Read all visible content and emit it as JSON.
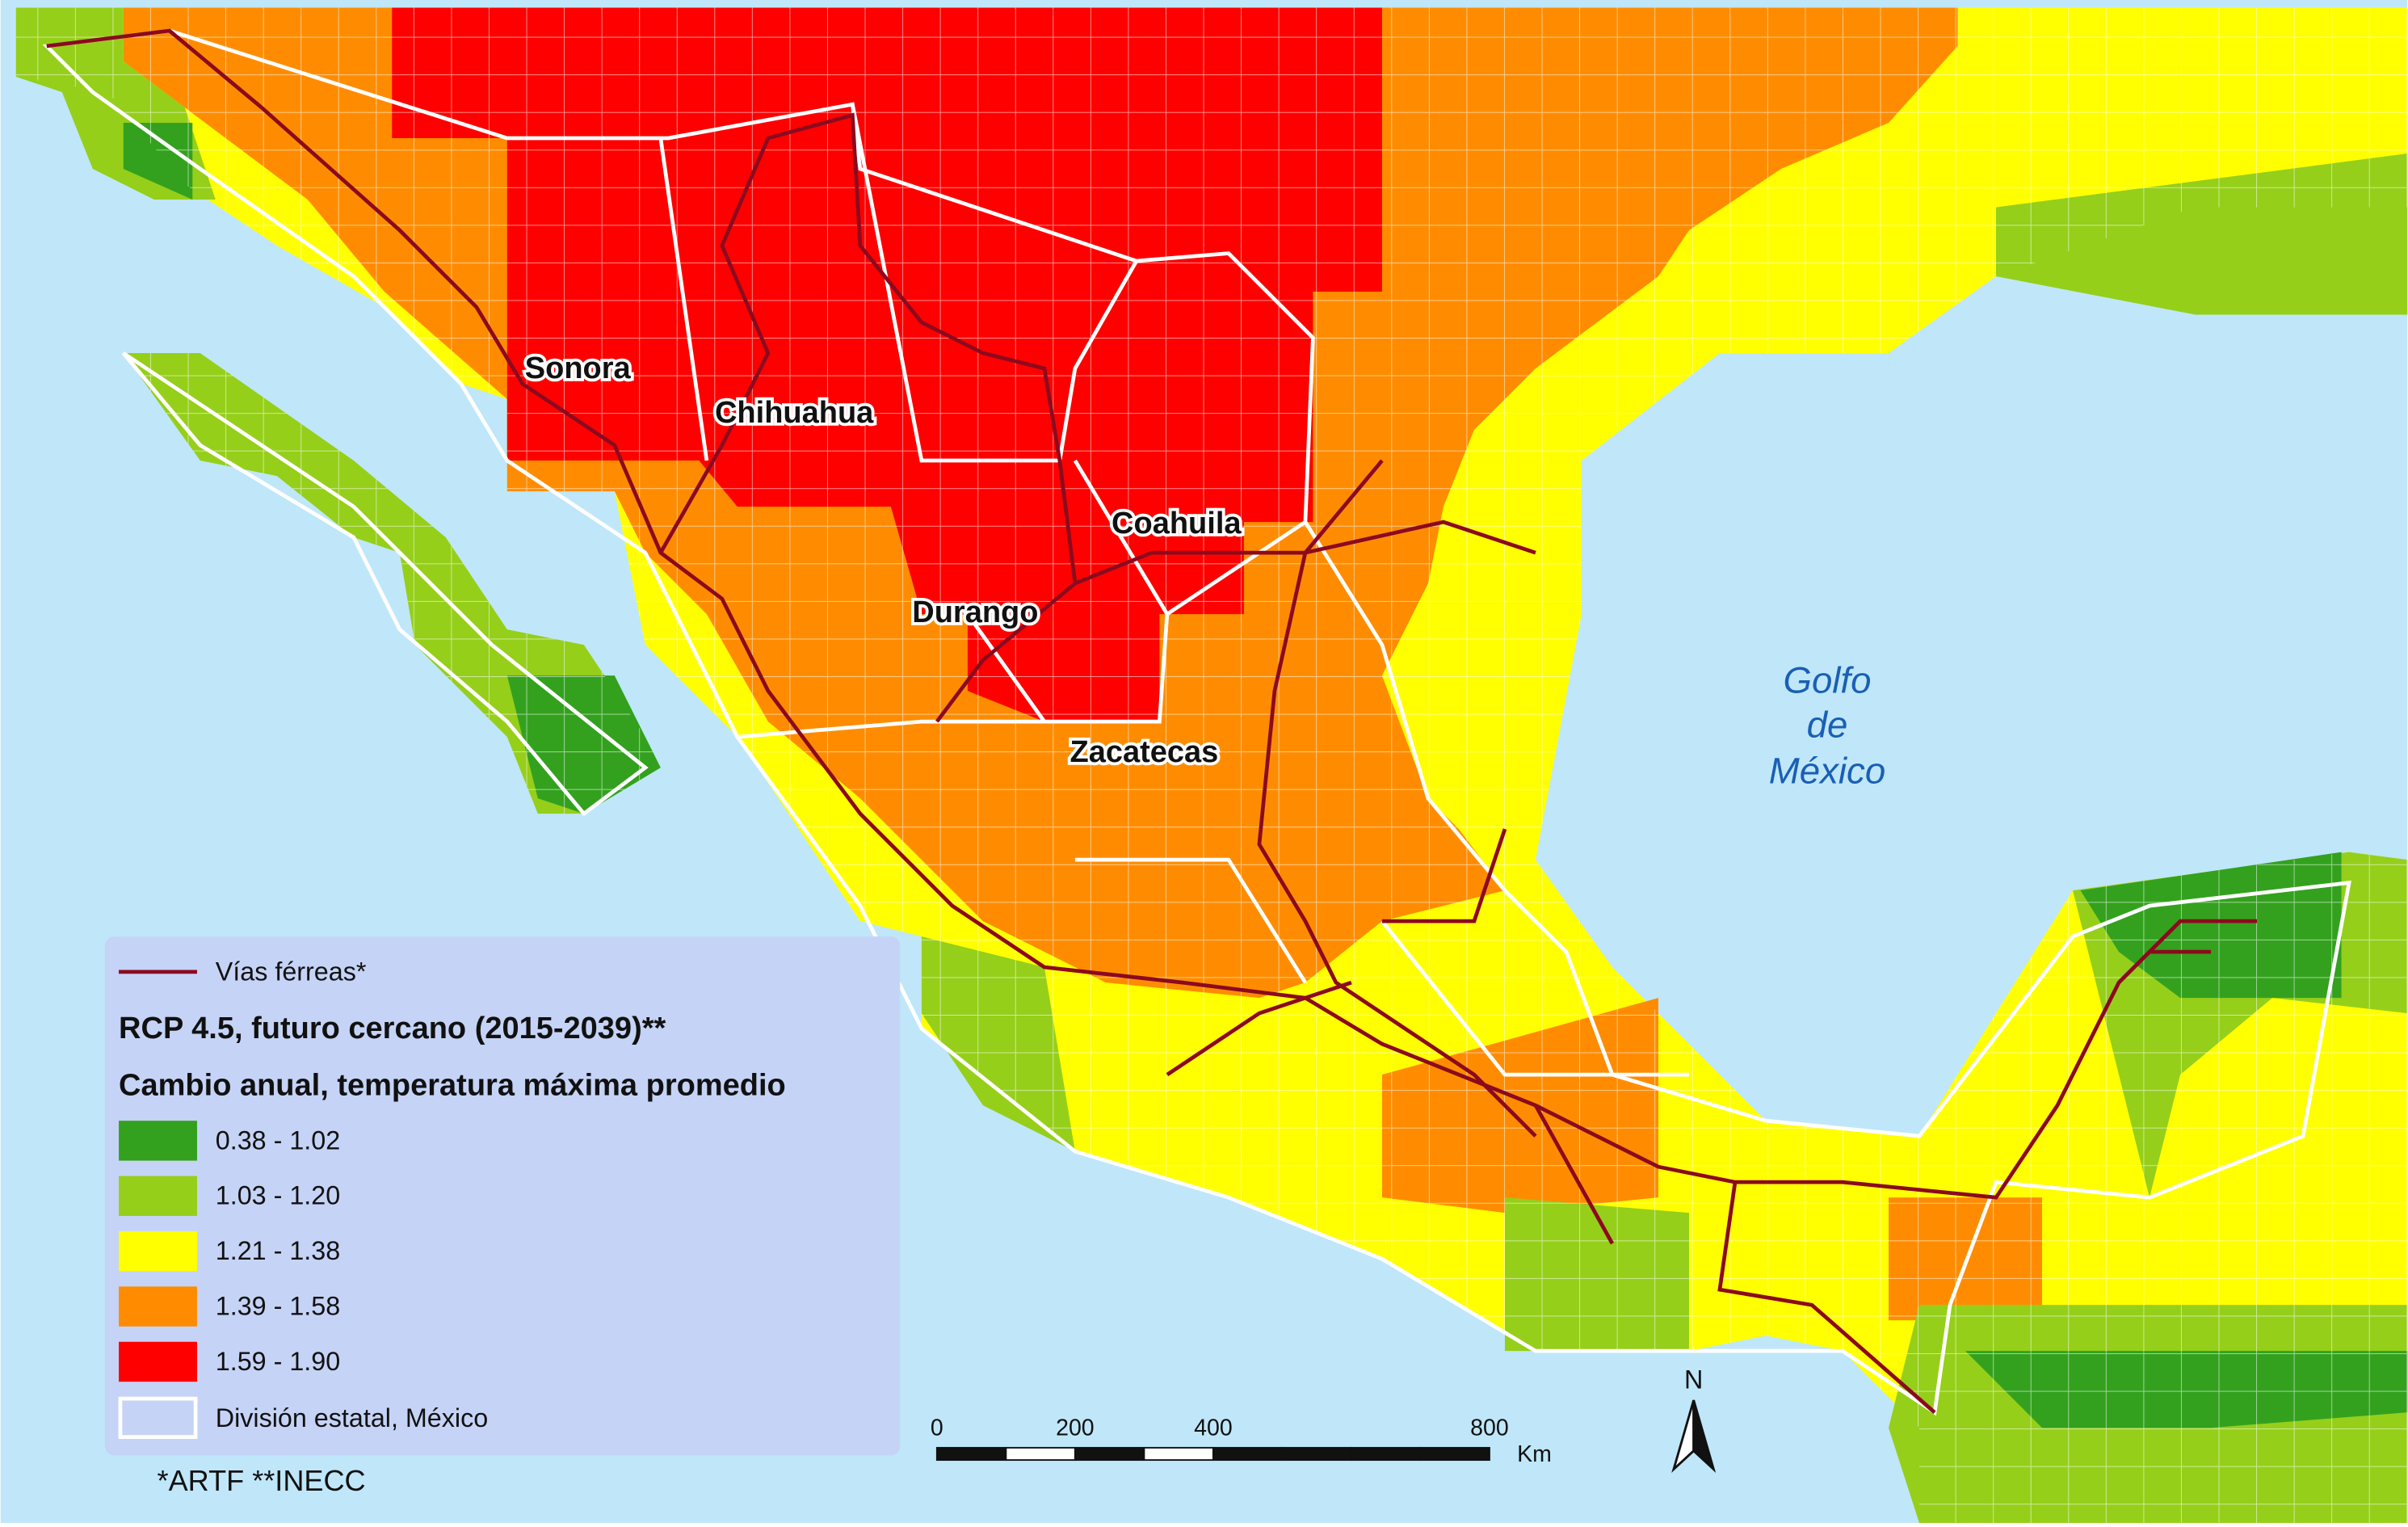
{
  "labels": {
    "states": [
      "Sonora",
      "Chihuahua",
      "Coahuila",
      "Durango",
      "Zacatecas"
    ],
    "gulf": [
      "Golfo",
      "de",
      "México"
    ]
  },
  "legend": {
    "railways": "Vías férreas*",
    "railway_color": "#8b0a1e",
    "title": "RCP 4.5, futuro cercano (2015-2039)**",
    "subtitle": "Cambio anual, temperatura máxima promedio",
    "classes": [
      {
        "label": "0.38 - 1.02",
        "color": "#33a11e"
      },
      {
        "label": "1.03 - 1.20",
        "color": "#95cf1a"
      },
      {
        "label": "1.21 - 1.38",
        "color": "#ffff00"
      },
      {
        "label": "1.39 - 1.58",
        "color": "#ff8c00"
      },
      {
        "label": "1.59 - 1.90",
        "color": "#ff0000"
      }
    ],
    "boundaries": "División estatal, México"
  },
  "scale_bar": {
    "ticks": [
      0,
      200,
      400,
      800
    ],
    "unit": "Km"
  },
  "north": "N",
  "footnote": "*ARTF **INECC"
}
